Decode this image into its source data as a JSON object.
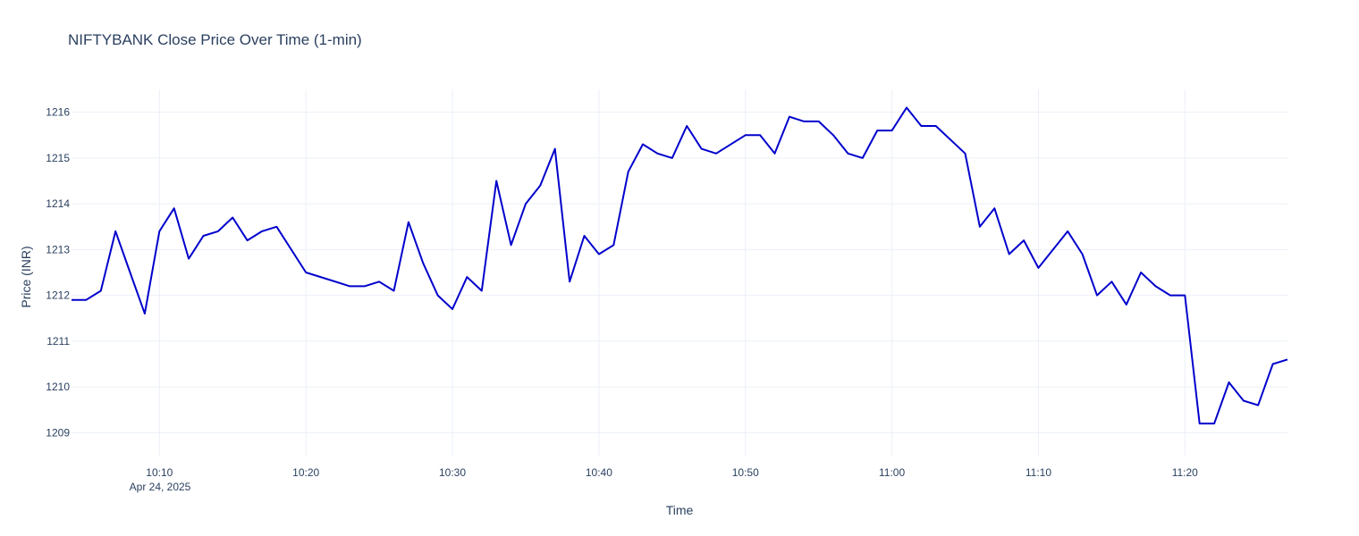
{
  "chart_data": {
    "type": "line",
    "title": "NIFTYBANK Close Price Over Time (1-min)",
    "xlabel": "Time",
    "ylabel": "Price (INR)",
    "date_label": "Apr 24, 2025",
    "x_ticks": [
      "10:10",
      "10:20",
      "10:30",
      "10:40",
      "10:50",
      "11:00",
      "11:10",
      "11:20"
    ],
    "y_ticks": [
      1209,
      1210,
      1211,
      1212,
      1213,
      1214,
      1215,
      1216
    ],
    "x_range": [
      "10:04",
      "11:27"
    ],
    "ylim": [
      1208.5,
      1216.5
    ],
    "grid": true,
    "series": [
      {
        "color": "#0000cc",
        "x": [
          "10:04",
          "10:05",
          "10:06",
          "10:07",
          "10:08",
          "10:09",
          "10:10",
          "10:11",
          "10:12",
          "10:13",
          "10:14",
          "10:15",
          "10:16",
          "10:17",
          "10:18",
          "10:20",
          "10:23",
          "10:24",
          "10:25",
          "10:26",
          "10:27",
          "10:28",
          "10:29",
          "10:30",
          "10:31",
          "10:32",
          "10:33",
          "10:34",
          "10:35",
          "10:36",
          "10:37",
          "10:38",
          "10:39",
          "10:40",
          "10:41",
          "10:42",
          "10:43",
          "10:44",
          "10:45",
          "10:46",
          "10:47",
          "10:48",
          "10:50",
          "10:51",
          "10:52",
          "10:53",
          "10:54",
          "10:55",
          "10:56",
          "10:57",
          "10:58",
          "10:59",
          "11:00",
          "11:01",
          "11:02",
          "11:03",
          "11:05",
          "11:06",
          "11:07",
          "11:08",
          "11:09",
          "11:10",
          "11:12",
          "11:13",
          "11:14",
          "11:15",
          "11:16",
          "11:17",
          "11:18",
          "11:19",
          "11:20",
          "11:21",
          "11:22",
          "11:23",
          "11:24",
          "11:25",
          "11:26",
          "11:27"
        ],
        "values": [
          1211.9,
          1211.9,
          1212.1,
          1213.4,
          1212.5,
          1211.6,
          1213.4,
          1213.9,
          1212.8,
          1213.3,
          1213.4,
          1213.7,
          1213.2,
          1213.4,
          1213.5,
          1212.5,
          1212.2,
          1212.2,
          1212.3,
          1212.1,
          1213.6,
          1212.7,
          1212.0,
          1211.7,
          1212.4,
          1212.1,
          1214.5,
          1213.1,
          1214.0,
          1214.4,
          1215.2,
          1212.3,
          1213.3,
          1212.9,
          1213.1,
          1214.7,
          1215.3,
          1215.1,
          1215.0,
          1215.7,
          1215.2,
          1215.1,
          1215.5,
          1215.5,
          1215.1,
          1215.9,
          1215.8,
          1215.8,
          1215.5,
          1215.1,
          1215.0,
          1215.6,
          1215.6,
          1216.1,
          1215.7,
          1215.7,
          1215.1,
          1213.5,
          1213.9,
          1212.9,
          1213.2,
          1212.6,
          1213.4,
          1212.9,
          1212.0,
          1212.3,
          1211.8,
          1212.5,
          1212.2,
          1212.0,
          1212.0,
          1209.2,
          1209.2,
          1210.1,
          1209.7,
          1209.6,
          1210.5,
          1210.6
        ]
      }
    ]
  }
}
